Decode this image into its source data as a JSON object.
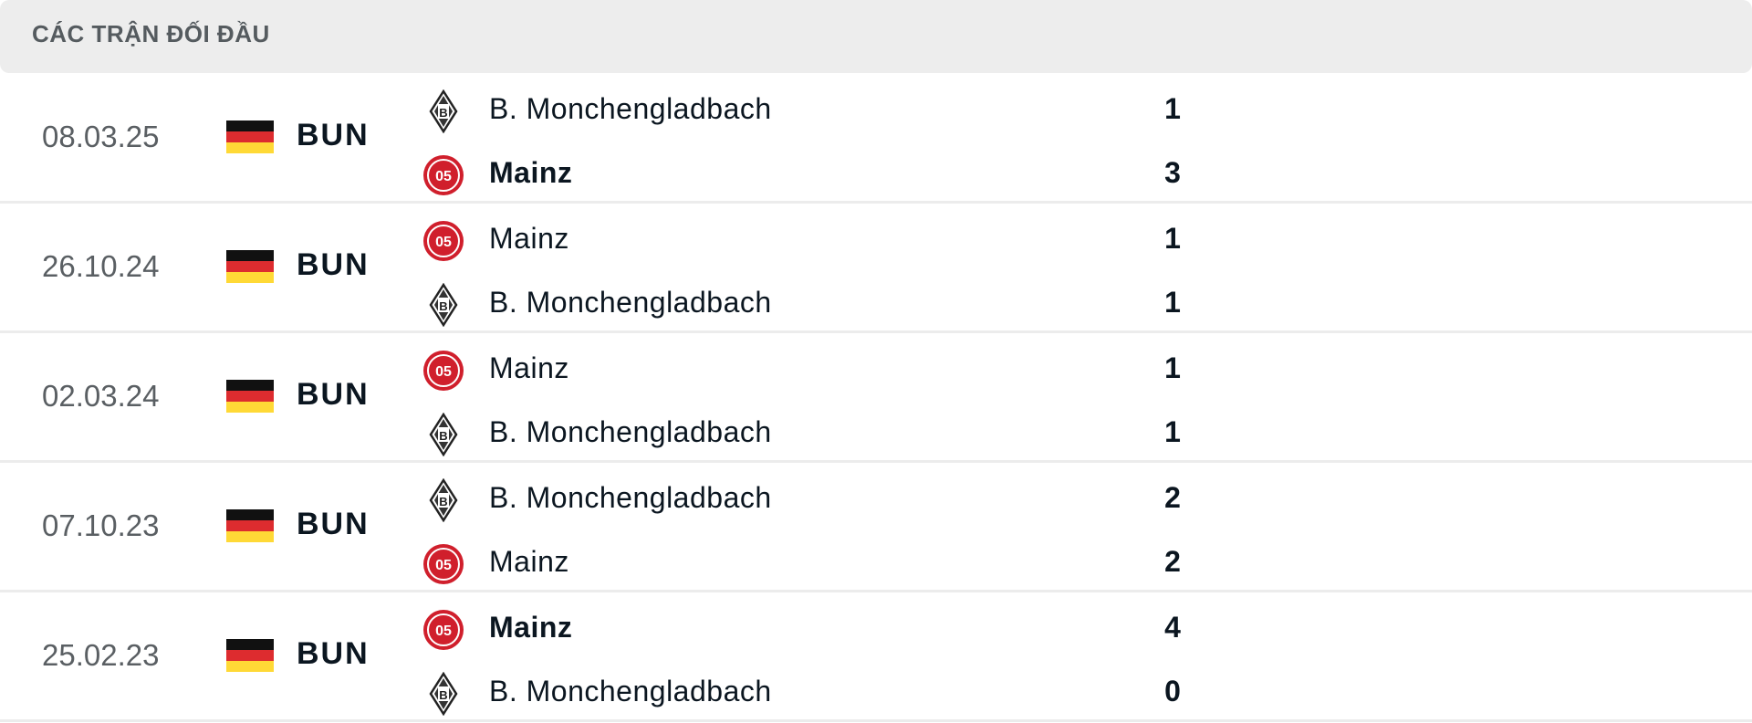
{
  "header": {
    "title": "CÁC TRẬN ĐỐI ĐẦU"
  },
  "colors": {
    "flag_black": "#111111",
    "flag_red": "#dd2c2f",
    "flag_gold": "#ffd936",
    "mainz_red": "#d01f2c"
  },
  "matches": [
    {
      "date": "08.03.25",
      "league": "BUN",
      "teams": [
        {
          "name": "B. Monchengladbach",
          "logo": "gladbach",
          "score": "1",
          "winner": false
        },
        {
          "name": "Mainz",
          "logo": "mainz",
          "score": "3",
          "winner": true
        }
      ]
    },
    {
      "date": "26.10.24",
      "league": "BUN",
      "teams": [
        {
          "name": "Mainz",
          "logo": "mainz",
          "score": "1",
          "winner": false
        },
        {
          "name": "B. Monchengladbach",
          "logo": "gladbach",
          "score": "1",
          "winner": false
        }
      ]
    },
    {
      "date": "02.03.24",
      "league": "BUN",
      "teams": [
        {
          "name": "Mainz",
          "logo": "mainz",
          "score": "1",
          "winner": false
        },
        {
          "name": "B. Monchengladbach",
          "logo": "gladbach",
          "score": "1",
          "winner": false
        }
      ]
    },
    {
      "date": "07.10.23",
      "league": "BUN",
      "teams": [
        {
          "name": "B. Monchengladbach",
          "logo": "gladbach",
          "score": "2",
          "winner": false
        },
        {
          "name": "Mainz",
          "logo": "mainz",
          "score": "2",
          "winner": false
        }
      ]
    },
    {
      "date": "25.02.23",
      "league": "BUN",
      "teams": [
        {
          "name": "Mainz",
          "logo": "mainz",
          "score": "4",
          "winner": true
        },
        {
          "name": "B. Monchengladbach",
          "logo": "gladbach",
          "score": "0",
          "winner": false
        }
      ]
    }
  ]
}
